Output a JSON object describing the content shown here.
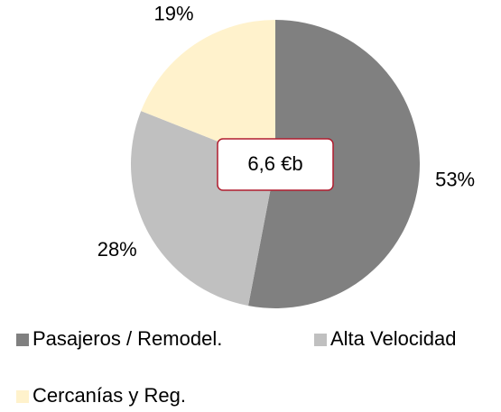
{
  "chart_data": {
    "type": "pie",
    "categories": [
      "Pasajeros / Remodel.",
      "Alta Velocidad",
      "Cercanías y Reg."
    ],
    "values": [
      53,
      28,
      19
    ],
    "value_labels": [
      "53%",
      "28%",
      "19%"
    ],
    "colors": [
      "#808080",
      "#c0c0c0",
      "#fff2cc"
    ],
    "annotation": "6,6 €b",
    "legend": "bottom"
  }
}
